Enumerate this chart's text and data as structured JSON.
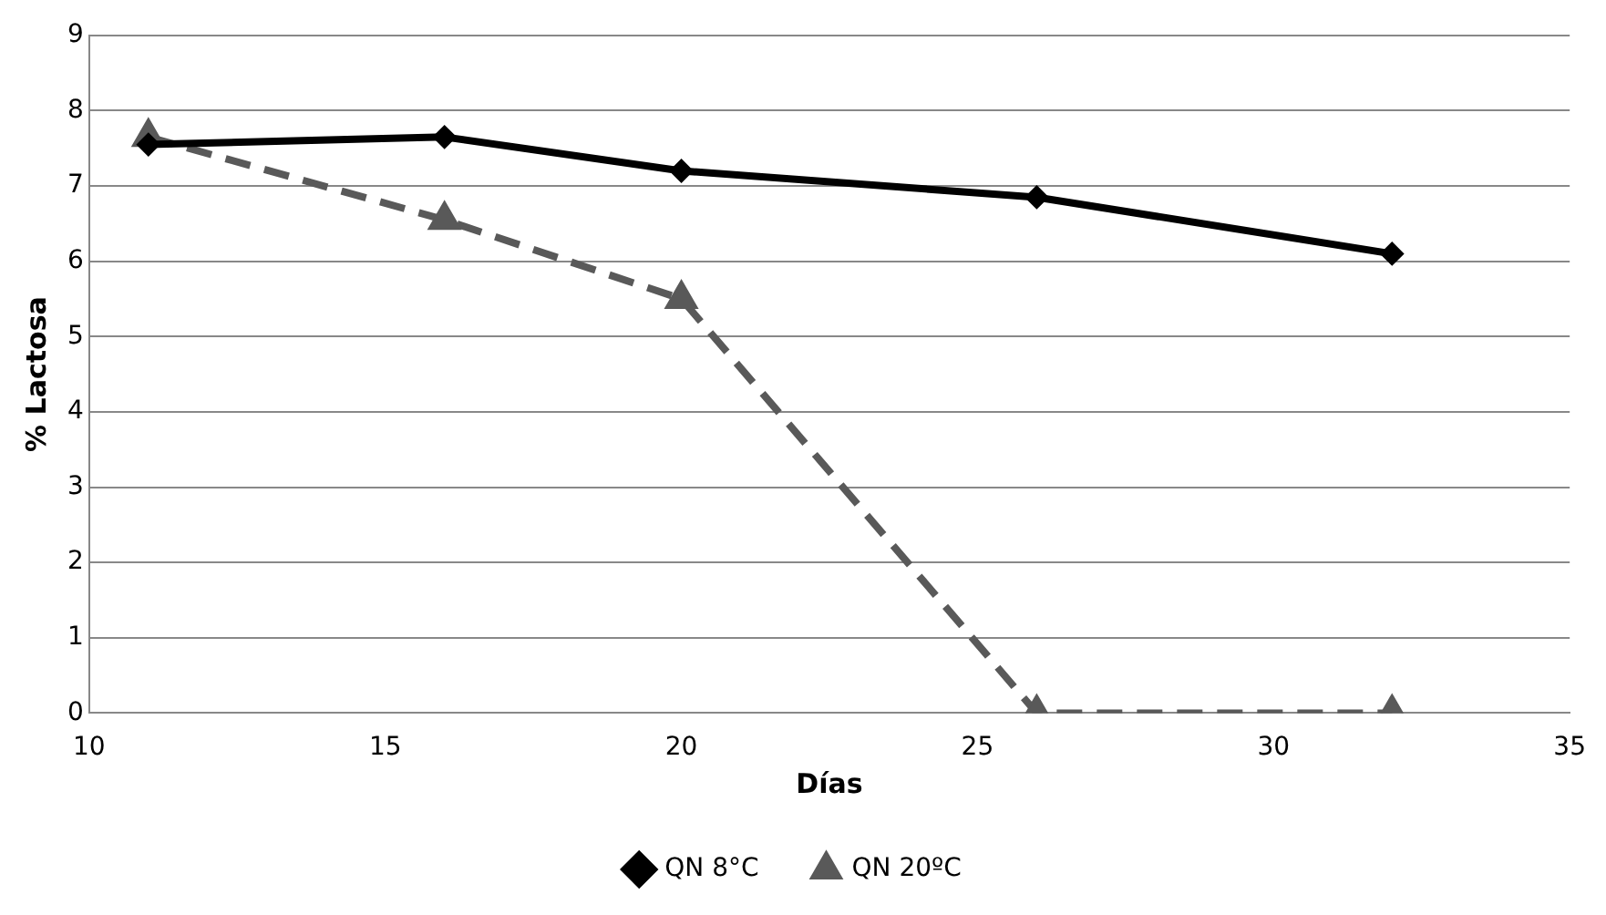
{
  "chart_data": {
    "type": "line",
    "xlabel": "Días",
    "ylabel": "% Lactosa",
    "xlim": [
      10,
      35
    ],
    "xticks": [
      10,
      15,
      20,
      25,
      30,
      35
    ],
    "ylim": [
      0,
      9
    ],
    "yticks": [
      0,
      1,
      2,
      3,
      4,
      5,
      6,
      7,
      8,
      9
    ],
    "grid": "y",
    "legend": "bottom",
    "series": [
      {
        "name": "QN 8°C",
        "color": "#000000",
        "x": [
          11,
          16,
          20,
          26,
          32
        ],
        "values": [
          7.55,
          7.65,
          7.2,
          6.85,
          6.1
        ],
        "marker": "diamond",
        "line_style": "solid"
      },
      {
        "name": "QN 20ºC",
        "color": "#595959",
        "x": [
          11,
          16,
          20,
          26,
          32
        ],
        "values": [
          7.65,
          6.55,
          5.5,
          0,
          0
        ],
        "marker": "triangle",
        "line_style": "dashed"
      }
    ]
  }
}
